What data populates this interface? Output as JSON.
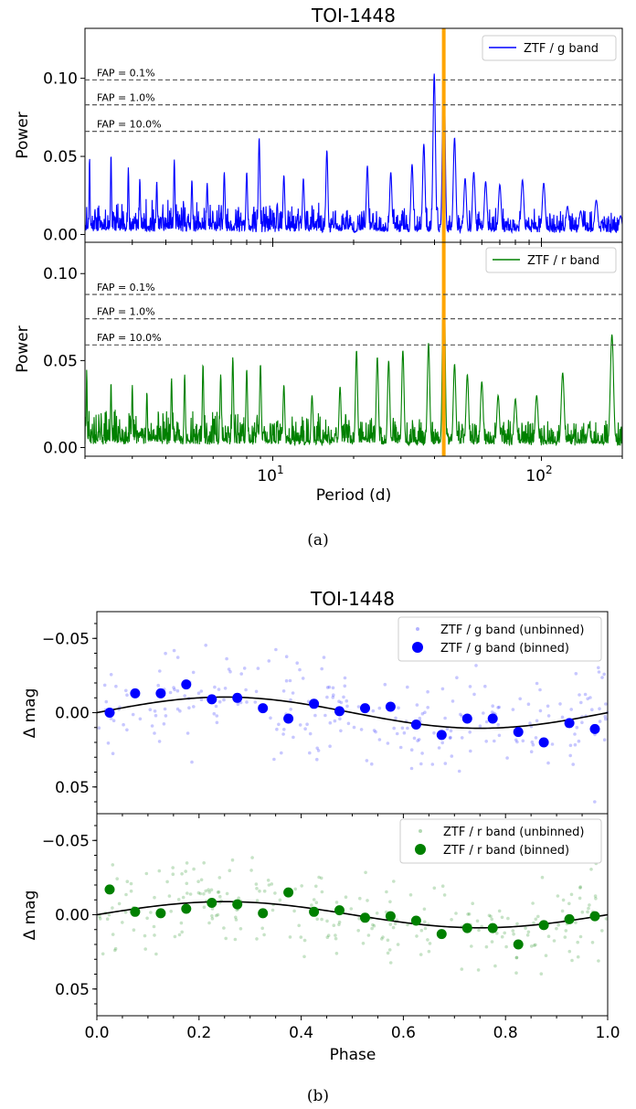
{
  "figure_a": {
    "title": "TOI-1448",
    "caption": "(a)",
    "xlabel": "Period (d)",
    "xticks": [
      {
        "base": "10",
        "exp": "1"
      },
      {
        "base": "10",
        "exp": "2"
      }
    ]
  },
  "figure_b": {
    "title": "TOI-1448",
    "caption": "(b)",
    "xlabel": "Phase"
  },
  "colors": {
    "g_band": "#0000ff",
    "r_band": "#008000",
    "period_marker": "#ffa500",
    "fap_line": "#444444",
    "model": "#000000"
  },
  "chart_data": [
    {
      "type": "line",
      "panel": "periodogram-g",
      "xscale": "log",
      "xlim": [
        2,
        200
      ],
      "ylim": [
        -0.005,
        0.132
      ],
      "ylabel": "Power",
      "yticks": [
        "0.00",
        "0.05",
        "0.10"
      ],
      "legend": {
        "label": "ZTF / g band",
        "position": "top-right"
      },
      "fap": [
        {
          "label": "FAP =  0.1%",
          "value": 0.099
        },
        {
          "label": "FAP =  1.0%",
          "value": 0.083
        },
        {
          "label": "FAP = 10.0%",
          "value": 0.066
        }
      ],
      "marker_period": 43.3,
      "peaks": [
        {
          "period": 2.08,
          "power": 0.05
        },
        {
          "period": 2.5,
          "power": 0.052
        },
        {
          "period": 2.9,
          "power": 0.043
        },
        {
          "period": 3.2,
          "power": 0.036
        },
        {
          "period": 3.7,
          "power": 0.034
        },
        {
          "period": 4.3,
          "power": 0.048
        },
        {
          "period": 5.0,
          "power": 0.035
        },
        {
          "period": 5.7,
          "power": 0.033
        },
        {
          "period": 6.6,
          "power": 0.04
        },
        {
          "period": 8.0,
          "power": 0.04
        },
        {
          "period": 8.9,
          "power": 0.062
        },
        {
          "period": 11.0,
          "power": 0.038
        },
        {
          "period": 13.0,
          "power": 0.036
        },
        {
          "period": 15.9,
          "power": 0.054
        },
        {
          "period": 22.5,
          "power": 0.044
        },
        {
          "period": 27.5,
          "power": 0.04
        },
        {
          "period": 33.0,
          "power": 0.045
        },
        {
          "period": 36.5,
          "power": 0.058
        },
        {
          "period": 39.9,
          "power": 0.103
        },
        {
          "period": 43.3,
          "power": 0.124
        },
        {
          "period": 47.5,
          "power": 0.062
        },
        {
          "period": 52.0,
          "power": 0.036
        },
        {
          "period": 56.0,
          "power": 0.04
        },
        {
          "period": 62.0,
          "power": 0.034
        },
        {
          "period": 70.0,
          "power": 0.032
        },
        {
          "period": 85.0,
          "power": 0.035
        },
        {
          "period": 102.0,
          "power": 0.033
        },
        {
          "period": 125.0,
          "power": 0.018
        },
        {
          "period": 140.0,
          "power": 0.015
        },
        {
          "period": 160.0,
          "power": 0.022
        },
        {
          "period": 197.0,
          "power": 0.012
        }
      ]
    },
    {
      "type": "line",
      "panel": "periodogram-r",
      "xscale": "log",
      "xlim": [
        2,
        200
      ],
      "ylim": [
        -0.005,
        0.118
      ],
      "ylabel": "Power",
      "yticks": [
        "0.00",
        "0.05",
        "0.10"
      ],
      "legend": {
        "label": "ZTF / r band",
        "position": "top-right"
      },
      "fap": [
        {
          "label": "FAP =  0.1%",
          "value": 0.088
        },
        {
          "label": "FAP =  1.0%",
          "value": 0.074
        },
        {
          "label": "FAP = 10.0%",
          "value": 0.059
        }
      ],
      "marker_period": 43.3,
      "peaks": [
        {
          "period": 2.03,
          "power": 0.045
        },
        {
          "period": 2.5,
          "power": 0.038
        },
        {
          "period": 3.0,
          "power": 0.036
        },
        {
          "period": 3.4,
          "power": 0.032
        },
        {
          "period": 4.2,
          "power": 0.04
        },
        {
          "period": 4.7,
          "power": 0.042
        },
        {
          "period": 5.5,
          "power": 0.048
        },
        {
          "period": 6.4,
          "power": 0.042
        },
        {
          "period": 7.1,
          "power": 0.052
        },
        {
          "period": 8.0,
          "power": 0.045
        },
        {
          "period": 9.0,
          "power": 0.048
        },
        {
          "period": 11.0,
          "power": 0.036
        },
        {
          "period": 14.0,
          "power": 0.03
        },
        {
          "period": 17.8,
          "power": 0.035
        },
        {
          "period": 20.5,
          "power": 0.056
        },
        {
          "period": 24.5,
          "power": 0.052
        },
        {
          "period": 27.0,
          "power": 0.05
        },
        {
          "period": 30.5,
          "power": 0.056
        },
        {
          "period": 38.0,
          "power": 0.06
        },
        {
          "period": 43.3,
          "power": 0.116
        },
        {
          "period": 47.5,
          "power": 0.048
        },
        {
          "period": 53.0,
          "power": 0.042
        },
        {
          "period": 60.0,
          "power": 0.038
        },
        {
          "period": 69.0,
          "power": 0.03
        },
        {
          "period": 80.0,
          "power": 0.028
        },
        {
          "period": 96.0,
          "power": 0.03
        },
        {
          "period": 120.0,
          "power": 0.043
        },
        {
          "period": 150.0,
          "power": 0.012
        },
        {
          "period": 183.0,
          "power": 0.065
        }
      ]
    },
    {
      "type": "scatter",
      "panel": "phase-g",
      "xlim": [
        0,
        1
      ],
      "ylim": [
        0.068,
        -0.068
      ],
      "inverted_y": true,
      "ylabel": "Δ mag",
      "yticks": [
        "−0.05",
        "0.00",
        "0.05"
      ],
      "legend": {
        "entries": [
          "ZTF / g band (unbinned)",
          "ZTF / g band (binned)"
        ],
        "position": "top-right"
      },
      "model": {
        "amplitude": 0.0105,
        "phase_of_minimum_mag": 0.25
      },
      "binned_x": [
        0.025,
        0.075,
        0.125,
        0.175,
        0.225,
        0.275,
        0.325,
        0.375,
        0.425,
        0.475,
        0.525,
        0.575,
        0.625,
        0.675,
        0.725,
        0.775,
        0.825,
        0.875,
        0.925,
        0.975
      ],
      "binned_y": [
        0.0,
        -0.013,
        -0.013,
        -0.019,
        -0.009,
        -0.01,
        -0.003,
        0.004,
        -0.006,
        -0.001,
        -0.003,
        -0.004,
        0.008,
        0.015,
        0.004,
        0.004,
        0.013,
        0.02,
        0.007,
        0.011
      ],
      "unbinned_count": 260,
      "unbinned_scatter": 0.016
    },
    {
      "type": "scatter",
      "panel": "phase-r",
      "xlim": [
        0,
        1
      ],
      "ylim": [
        0.068,
        -0.068
      ],
      "inverted_y": true,
      "ylabel": "Δ mag",
      "xlabel": "Phase",
      "xticks": [
        "0.0",
        "0.2",
        "0.4",
        "0.6",
        "0.8",
        "1.0"
      ],
      "yticks": [
        "−0.05",
        "0.00",
        "0.05"
      ],
      "legend": {
        "entries": [
          "ZTF / r band (unbinned)",
          "ZTF / r band (binned)"
        ],
        "position": "top-right"
      },
      "model": {
        "amplitude": 0.0088,
        "phase_of_minimum_mag": 0.25
      },
      "binned_x": [
        0.025,
        0.075,
        0.125,
        0.175,
        0.225,
        0.275,
        0.325,
        0.375,
        0.425,
        0.475,
        0.525,
        0.575,
        0.625,
        0.675,
        0.725,
        0.775,
        0.825,
        0.875,
        0.925,
        0.975
      ],
      "binned_y": [
        -0.017,
        -0.002,
        -0.001,
        -0.004,
        -0.008,
        -0.007,
        -0.001,
        -0.015,
        -0.002,
        -0.003,
        0.002,
        0.001,
        0.004,
        0.013,
        0.009,
        0.009,
        0.02,
        0.007,
        0.003,
        0.001
      ],
      "unbinned_count": 260,
      "unbinned_scatter": 0.015
    }
  ]
}
